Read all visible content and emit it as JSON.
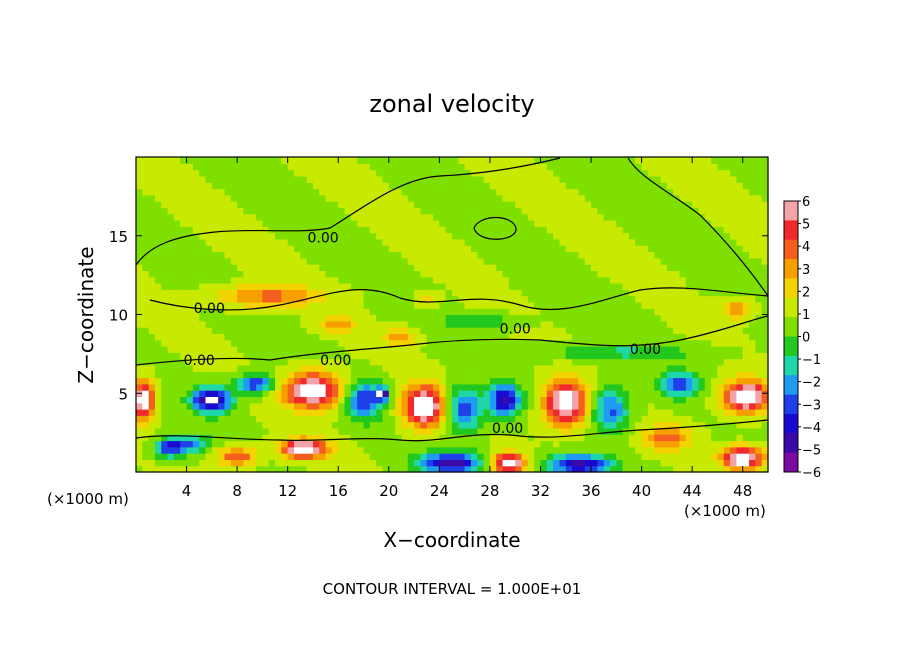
{
  "chart_data": {
    "type": "heatmap",
    "title": "zonal velocity",
    "xlabel": "X−coordinate",
    "ylabel": "Z−coordinate",
    "x_units_left": "(×1000 m)",
    "x_units_right": "(×1000 m)",
    "footer": "CONTOUR INTERVAL = 1.000E+01",
    "xlim": [
      0,
      50
    ],
    "ylim": [
      0,
      20
    ],
    "x_ticks": [
      4,
      8,
      12,
      16,
      20,
      24,
      28,
      32,
      36,
      40,
      44,
      48
    ],
    "y_ticks": [
      5,
      10,
      15
    ],
    "contour_labels": [
      {
        "text": "0.00",
        "x": 14.8,
        "y": 14.9
      },
      {
        "text": "0.00",
        "x": 5.8,
        "y": 10.4
      },
      {
        "text": "0.00",
        "x": 30.0,
        "y": 9.1
      },
      {
        "text": "0.00",
        "x": 40.3,
        "y": 7.8
      },
      {
        "text": "0.00",
        "x": 5.0,
        "y": 7.1
      },
      {
        "text": "0.00",
        "x": 15.8,
        "y": 7.1
      },
      {
        "text": "0.00",
        "x": 29.4,
        "y": 2.8
      }
    ],
    "colorbar": {
      "labels": [
        "6",
        "5",
        "4",
        "3",
        "2",
        "1",
        "0",
        "−1",
        "−2",
        "−3",
        "−4",
        "−5",
        "−6"
      ],
      "colors": [
        "#f4a3a8",
        "#f02a2a",
        "#f45e1e",
        "#f6a000",
        "#f3d400",
        "#c8ea00",
        "#7fe000",
        "#22c820",
        "#1fd6a8",
        "#1e9cf0",
        "#1f40e8",
        "#1a0ad0",
        "#3a0aa8",
        "#7a0aa0"
      ],
      "min": -6,
      "max": 6
    },
    "features": [
      {
        "x": 10.5,
        "y": 11.2,
        "value": 3.2,
        "sx": 4.0,
        "sy": 0.7
      },
      {
        "x": 16.0,
        "y": 9.4,
        "value": 2.6,
        "sx": 1.5,
        "sy": 0.5
      },
      {
        "x": 21.0,
        "y": 8.6,
        "value": 2.8,
        "sx": 1.2,
        "sy": 0.5
      },
      {
        "x": 47.5,
        "y": 10.4,
        "value": 3.0,
        "sx": 1.2,
        "sy": 0.6
      },
      {
        "x": 23.0,
        "y": 11.0,
        "value": 2.0,
        "sx": 0.8,
        "sy": 0.4
      },
      {
        "x": 27.0,
        "y": 9.6,
        "value": -2.0,
        "sx": 3.0,
        "sy": 0.4
      },
      {
        "x": 38.0,
        "y": 7.6,
        "value": -2.0,
        "sx": 6.0,
        "sy": 0.5
      },
      {
        "x": 14.0,
        "y": 5.2,
        "value": 7.0,
        "sx": 2.2,
        "sy": 1.1
      },
      {
        "x": 0.6,
        "y": 4.6,
        "value": 7.0,
        "sx": 0.8,
        "sy": 1.2
      },
      {
        "x": 6.0,
        "y": 4.6,
        "value": -7.0,
        "sx": 1.5,
        "sy": 0.8
      },
      {
        "x": 9.5,
        "y": 5.6,
        "value": -4.5,
        "sx": 1.5,
        "sy": 0.6
      },
      {
        "x": 13.3,
        "y": 1.5,
        "value": 7.0,
        "sx": 1.8,
        "sy": 0.6
      },
      {
        "x": 18.0,
        "y": 4.6,
        "value": -4.5,
        "sx": 1.5,
        "sy": 1.2
      },
      {
        "x": 19.5,
        "y": 5.0,
        "value": -6.5,
        "sx": 0.5,
        "sy": 0.4
      },
      {
        "x": 22.8,
        "y": 4.2,
        "value": 7.0,
        "sx": 1.6,
        "sy": 1.3
      },
      {
        "x": 26.0,
        "y": 4.0,
        "value": -4.5,
        "sx": 1.4,
        "sy": 1.4
      },
      {
        "x": 29.2,
        "y": 4.6,
        "value": -6.0,
        "sx": 1.2,
        "sy": 1.0
      },
      {
        "x": 34.0,
        "y": 4.4,
        "value": 7.0,
        "sx": 1.7,
        "sy": 1.4
      },
      {
        "x": 37.5,
        "y": 4.0,
        "value": -4.0,
        "sx": 1.5,
        "sy": 1.4
      },
      {
        "x": 43.0,
        "y": 5.6,
        "value": -4.5,
        "sx": 1.4,
        "sy": 0.8
      },
      {
        "x": 48.3,
        "y": 4.8,
        "value": 7.0,
        "sx": 1.8,
        "sy": 1.0
      },
      {
        "x": 25.0,
        "y": 0.6,
        "value": -6.0,
        "sx": 2.5,
        "sy": 0.7
      },
      {
        "x": 29.5,
        "y": 0.6,
        "value": 7.0,
        "sx": 1.3,
        "sy": 0.6
      },
      {
        "x": 35.0,
        "y": 0.5,
        "value": -6.0,
        "sx": 2.5,
        "sy": 0.6
      },
      {
        "x": 48.0,
        "y": 0.9,
        "value": 7.0,
        "sx": 1.6,
        "sy": 0.7
      },
      {
        "x": 8.0,
        "y": 1.0,
        "value": 4.0,
        "sx": 1.5,
        "sy": 0.6
      },
      {
        "x": 4.0,
        "y": 1.8,
        "value": -4.0,
        "sx": 1.6,
        "sy": 0.6
      },
      {
        "x": 42.0,
        "y": 2.2,
        "value": 3.2,
        "sx": 1.8,
        "sy": 0.8
      },
      {
        "x": 2.5,
        "y": 1.5,
        "value": -3.5,
        "sx": 1.0,
        "sy": 0.6
      }
    ]
  }
}
